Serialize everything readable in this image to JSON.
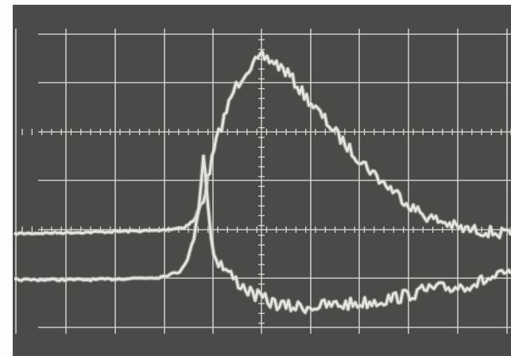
{
  "photo": {
    "subject": "oscilloscope-screen",
    "colors": {
      "background": "#fdfdfd",
      "screen": "#4a4a48",
      "graticule": "#d8d8d4",
      "trace": "#e4e4df",
      "trace_glow": "#bdbdb7"
    }
  }
}
